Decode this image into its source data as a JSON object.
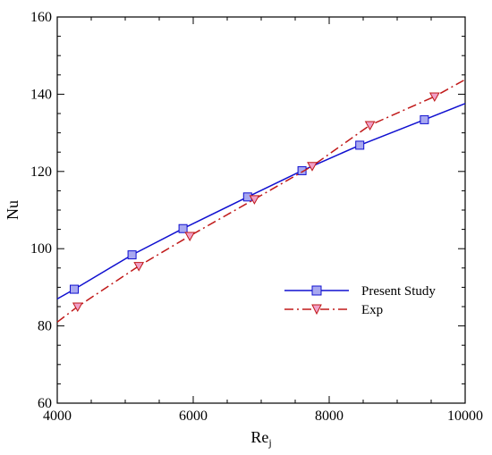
{
  "chart_data": {
    "type": "line",
    "title": "",
    "xlabel": "Re",
    "xlabel_sub": "j",
    "ylabel": "Nu",
    "xlim": [
      4000,
      10000
    ],
    "ylim": [
      60,
      160
    ],
    "xticks": [
      4000,
      6000,
      8000,
      10000
    ],
    "yticks": [
      60,
      80,
      100,
      120,
      140,
      160
    ],
    "x_minor_step": 500,
    "y_minor_step": 5,
    "grid": false,
    "legend_position": "center-right",
    "series": [
      {
        "name": "Present Study",
        "color": "#1010d0",
        "marker": "square",
        "marker_fill": "#a8a8f0",
        "line_style": "solid",
        "line": [
          [
            4000,
            87.0
          ],
          [
            4250,
            89.5
          ],
          [
            5100,
            98.4
          ],
          [
            5850,
            105.2
          ],
          [
            6800,
            113.4
          ],
          [
            7600,
            120.2
          ],
          [
            8450,
            126.8
          ],
          [
            9400,
            133.4
          ],
          [
            10000,
            137.6
          ]
        ],
        "markers": [
          [
            4250,
            89.5
          ],
          [
            5100,
            98.4
          ],
          [
            5850,
            105.2
          ],
          [
            6800,
            113.4
          ],
          [
            7600,
            120.2
          ],
          [
            8450,
            126.8
          ],
          [
            9400,
            133.4
          ]
        ]
      },
      {
        "name": "Exp",
        "color": "#c01818",
        "marker": "triangle-down",
        "marker_fill": "#f0a0c8",
        "line_style": "dashdot",
        "line": [
          [
            4000,
            81.0
          ],
          [
            4300,
            85.0
          ],
          [
            5200,
            95.5
          ],
          [
            5950,
            103.3
          ],
          [
            6900,
            112.8
          ],
          [
            7750,
            121.4
          ],
          [
            8600,
            132.0
          ],
          [
            9550,
            139.4
          ],
          [
            10000,
            143.8
          ]
        ],
        "markers": [
          [
            4300,
            85.0
          ],
          [
            5200,
            95.5
          ],
          [
            5950,
            103.3
          ],
          [
            6900,
            112.8
          ],
          [
            7750,
            121.4
          ],
          [
            8600,
            132.0
          ],
          [
            9550,
            139.4
          ]
        ]
      }
    ]
  }
}
